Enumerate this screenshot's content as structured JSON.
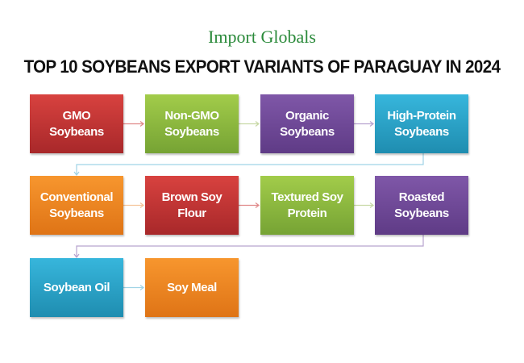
{
  "logo": "Import Globals",
  "title": "TOP 10 SOYBEANS EXPORT VARIANTS OF PARAGUAY IN 2024",
  "colors": {
    "red": "#c23535",
    "green": "#8cba3f",
    "purple": "#6f4a98",
    "blue": "#2aa2c8",
    "orange": "#f0861f"
  },
  "boxes": [
    {
      "label": "GMO Soybeans",
      "color": "red"
    },
    {
      "label": "Non-GMO Soybeans",
      "color": "green"
    },
    {
      "label": "Organic Soybeans",
      "color": "purple"
    },
    {
      "label": "High-Protein Soybeans",
      "color": "blue"
    },
    {
      "label": "Conventional Soybeans",
      "color": "orange"
    },
    {
      "label": "Brown Soy Flour",
      "color": "red"
    },
    {
      "label": "Textured Soy Protein",
      "color": "green"
    },
    {
      "label": "Roasted Soybeans",
      "color": "purple"
    },
    {
      "label": "Soybean Oil",
      "color": "blue"
    },
    {
      "label": "Soy Meal",
      "color": "orange"
    }
  ]
}
